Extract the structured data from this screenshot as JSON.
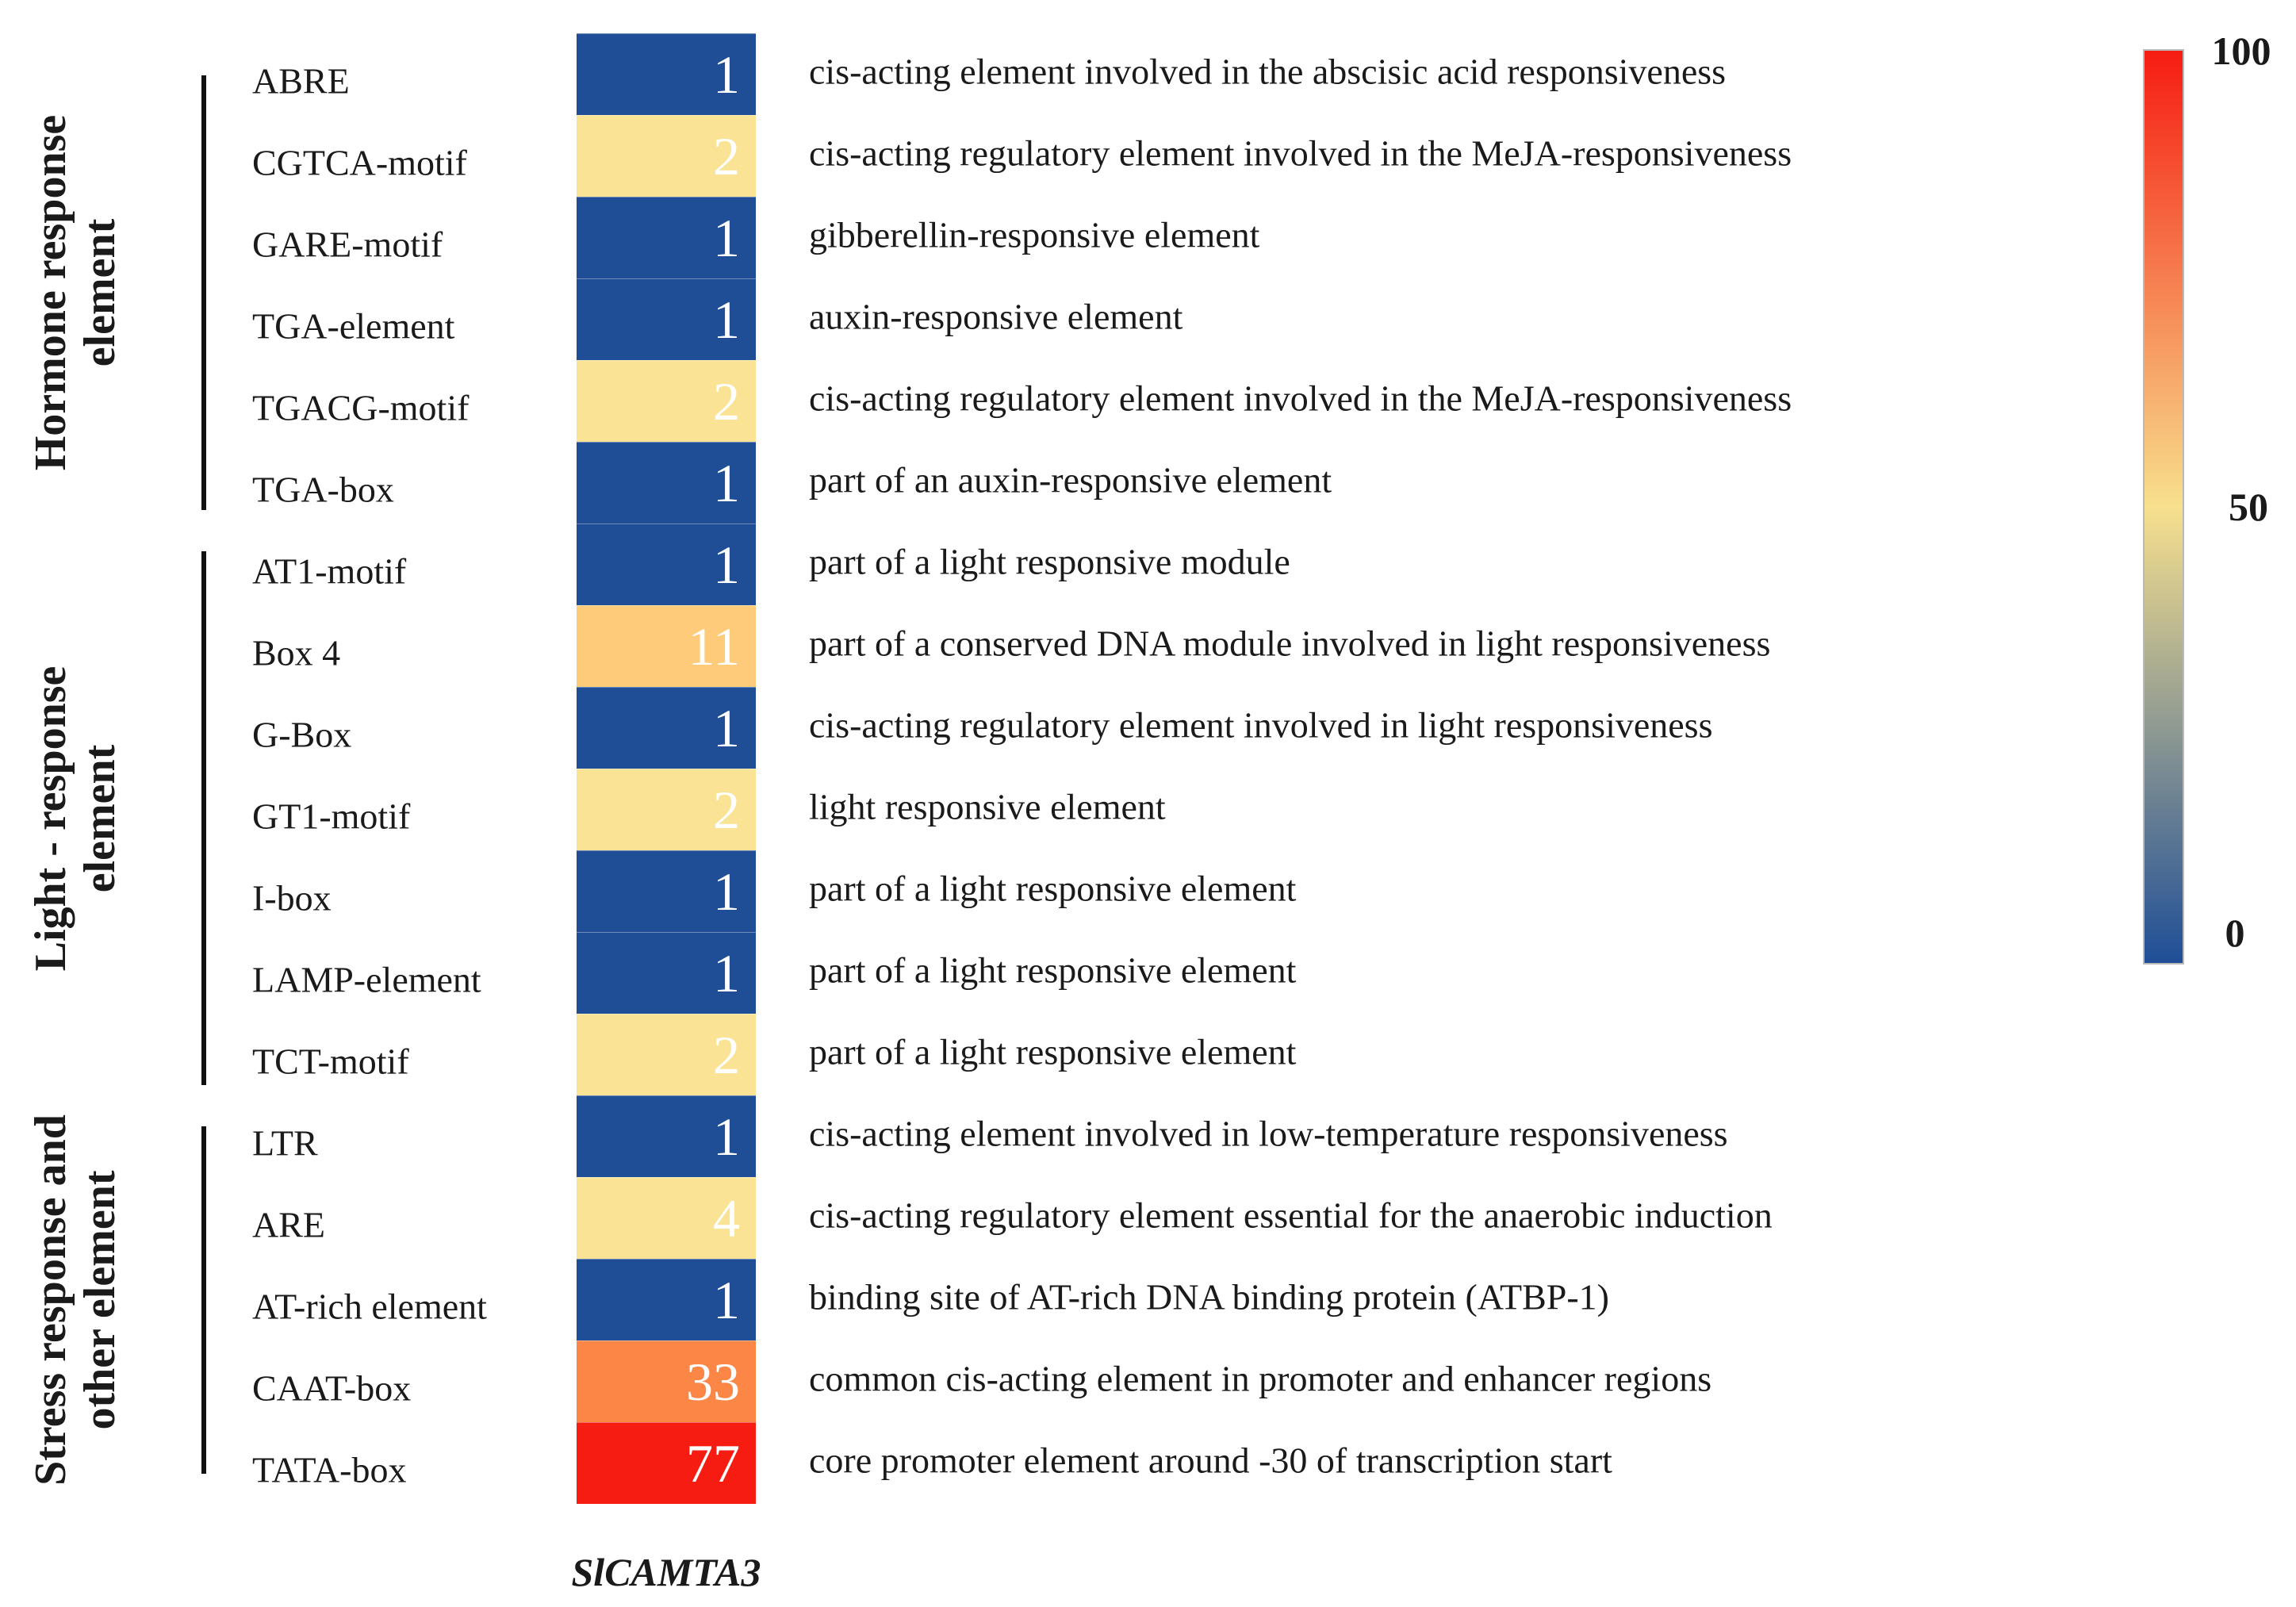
{
  "chart_data": {
    "type": "heatmap",
    "title": "",
    "column_label": "SlCAMTA3",
    "groups": [
      {
        "label_lines": [
          "Hormone response",
          "element"
        ],
        "rows": [
          {
            "element": "ABRE",
            "count": 1,
            "description": "cis-acting element involved in the abscisic acid responsiveness"
          },
          {
            "element": "CGTCA-motif",
            "count": 2,
            "description": "cis-acting regulatory element involved in the MeJA-responsiveness"
          },
          {
            "element": "GARE-motif",
            "count": 1,
            "description": "gibberellin-responsive element"
          },
          {
            "element": "TGA-element",
            "count": 1,
            "description": "auxin-responsive element"
          },
          {
            "element": "TGACG-motif",
            "count": 2,
            "description": "cis-acting regulatory element involved in the MeJA-responsiveness"
          },
          {
            "element": "TGA-box",
            "count": 1,
            "description": "part of an auxin-responsive element"
          }
        ]
      },
      {
        "label_lines": [
          "Light - response",
          "element"
        ],
        "rows": [
          {
            "element": "AT1-motif",
            "count": 1,
            "description": "part of a light responsive module"
          },
          {
            "element": "Box 4",
            "count": 11,
            "description": "part of a conserved DNA module involved in light responsiveness"
          },
          {
            "element": "G-Box",
            "count": 1,
            "description": "cis-acting regulatory element involved in light responsiveness"
          },
          {
            "element": "GT1-motif",
            "count": 2,
            "description": "light responsive element"
          },
          {
            "element": "I-box",
            "count": 1,
            "description": "part of a light responsive element"
          },
          {
            "element": "LAMP-element",
            "count": 1,
            "description": "part of a light responsive element"
          },
          {
            "element": "TCT-motif",
            "count": 2,
            "description": "part of a light responsive element"
          }
        ]
      },
      {
        "label_lines": [
          "Stress response and",
          "other element"
        ],
        "rows": [
          {
            "element": "LTR",
            "count": 1,
            "description": "cis-acting element involved in low-temperature responsiveness"
          },
          {
            "element": "ARE",
            "count": 4,
            "description": "cis-acting regulatory element essential for the anaerobic induction"
          },
          {
            "element": "AT-rich element",
            "count": 1,
            "description": "binding site of AT-rich DNA binding protein (ATBP-1)"
          },
          {
            "element": "CAAT-box",
            "count": 33,
            "description": "common cis-acting element in promoter and enhancer regions"
          },
          {
            "element": "TATA-box",
            "count": 77,
            "description": "core promoter element around -30 of transcription start"
          }
        ]
      }
    ],
    "color_scale": {
      "range": [
        0,
        100
      ],
      "ticks": [
        "0",
        "50",
        "100"
      ],
      "low_color": "#1f4e96",
      "mid_color": "#f7e08e",
      "high_color": "#f61c12"
    },
    "cell_colors": {
      "1": "#1f4e96",
      "2": "#fae394",
      "4": "#fae394",
      "11": "#fdcb7a",
      "33": "#fb8646",
      "77": "#f61c12"
    }
  }
}
